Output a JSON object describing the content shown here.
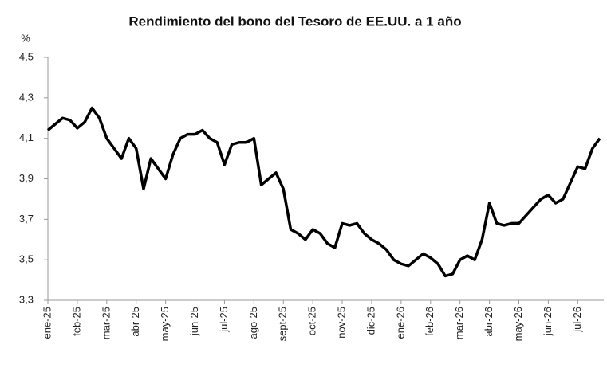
{
  "chart_data": {
    "type": "line",
    "title": "Rendimiento del bono del Tesoro de EE.UU. a 1 año",
    "y_label": "%",
    "categories": [
      "ene-25",
      null,
      null,
      null,
      "feb-25",
      null,
      null,
      null,
      "mar-25",
      null,
      null,
      null,
      "abr-25",
      null,
      null,
      null,
      "may-25",
      null,
      null,
      null,
      "jun-25",
      null,
      null,
      null,
      "jul-25",
      null,
      null,
      null,
      "ago-25",
      null,
      null,
      null,
      "sept-25",
      null,
      null,
      null,
      "oct-25",
      null,
      null,
      null,
      "nov-25",
      null,
      null,
      null,
      "dic-25",
      null,
      null,
      null,
      "ene-26",
      null,
      null,
      null,
      "feb-26",
      null,
      null,
      null,
      "mar-26",
      null,
      null,
      null,
      "abr-26",
      null,
      null,
      null,
      "may-26",
      null,
      null,
      null,
      "jun-26",
      null,
      null,
      null,
      "jul-26",
      null,
      null,
      null
    ],
    "series": [
      {
        "color": "#000000",
        "values": [
          4.14,
          4.17,
          4.2,
          4.19,
          4.15,
          4.18,
          4.25,
          4.2,
          4.1,
          4.05,
          4.0,
          4.1,
          4.05,
          3.85,
          4.0,
          3.95,
          3.9,
          4.02,
          4.1,
          4.12,
          4.12,
          4.14,
          4.1,
          4.08,
          3.97,
          4.07,
          4.08,
          4.08,
          4.1,
          3.87,
          3.9,
          3.93,
          3.85,
          3.65,
          3.63,
          3.6,
          3.65,
          3.63,
          3.58,
          3.56,
          3.68,
          3.67,
          3.68,
          3.63,
          3.6,
          3.58,
          3.55,
          3.5,
          3.48,
          3.47,
          3.5,
          3.53,
          3.51,
          3.48,
          3.42,
          3.43,
          3.5,
          3.52,
          3.5,
          3.6,
          3.78,
          3.68,
          3.67,
          3.68,
          3.68,
          3.72,
          3.76,
          3.8,
          3.82,
          3.78,
          3.8,
          3.88,
          3.96,
          3.95,
          4.05,
          4.1
        ]
      }
    ],
    "ylim": [
      3.3,
      4.5
    ],
    "yticks": [
      {
        "value": 3.3,
        "label": "3,3"
      },
      {
        "value": 3.5,
        "label": "3,5"
      },
      {
        "value": 3.7,
        "label": "3,7"
      },
      {
        "value": 3.9,
        "label": "3,9"
      },
      {
        "value": 4.1,
        "label": "4,1"
      },
      {
        "value": 4.3,
        "label": "4,3"
      },
      {
        "value": 4.5,
        "label": "4,5"
      }
    ],
    "grid": false
  }
}
